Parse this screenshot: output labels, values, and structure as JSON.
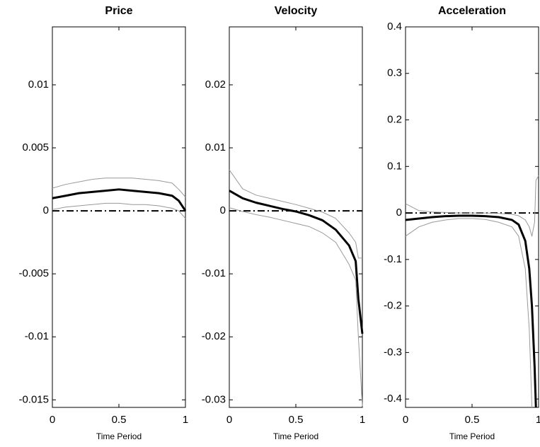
{
  "chart_data": [
    {
      "type": "line",
      "title": "Price",
      "xlabel": "Time Period",
      "x": [
        0,
        0.1,
        0.2,
        0.3,
        0.4,
        0.5,
        0.6,
        0.7,
        0.8,
        0.9,
        0.95,
        1
      ],
      "series": [
        {
          "color": "#000000",
          "width": 3,
          "values": [
            0.001,
            0.0012,
            0.0014,
            0.0015,
            0.0016,
            0.0017,
            0.0016,
            0.0015,
            0.0014,
            0.0012,
            0.0008,
            0
          ]
        },
        {
          "color": "#999999",
          "width": 1,
          "values": [
            0.0018,
            0.0021,
            0.0023,
            0.0025,
            0.0026,
            0.0026,
            0.0026,
            0.0025,
            0.0024,
            0.0022,
            0.0017,
            0.0011
          ]
        },
        {
          "color": "#999999",
          "width": 1,
          "values": [
            0.0001,
            0.0003,
            0.0004,
            0.0005,
            0.0006,
            0.0006,
            0.0005,
            0.0005,
            0.0004,
            0.0002,
            0,
            -0.0006
          ]
        }
      ],
      "hlines": [
        {
          "value": 0,
          "style": "dash-dot",
          "color": "#000000"
        }
      ],
      "xlim": [
        0,
        1
      ],
      "xticks": [
        0,
        0.5,
        1
      ],
      "ylim": [
        -0.0156,
        0.0146
      ],
      "yticks": [
        -0.015,
        -0.01,
        -0.005,
        0,
        0.005,
        0.01
      ]
    },
    {
      "type": "line",
      "title": "Velocity",
      "xlabel": "Time Period",
      "x": [
        0,
        0.1,
        0.2,
        0.3,
        0.4,
        0.5,
        0.6,
        0.7,
        0.8,
        0.9,
        0.95,
        0.97,
        1
      ],
      "series": [
        {
          "color": "#000000",
          "width": 3,
          "values": [
            0.0032,
            0.002,
            0.0013,
            0.0008,
            0.0003,
            -0.0001,
            -0.0007,
            -0.0015,
            -0.003,
            -0.0055,
            -0.008,
            -0.014,
            -0.0195
          ]
        },
        {
          "color": "#999999",
          "width": 1,
          "values": [
            0.0065,
            0.0035,
            0.0025,
            0.002,
            0.0015,
            0.001,
            0.0004,
            -0.0002,
            -0.0012,
            -0.0035,
            -0.005,
            -0.0075,
            -0.0075
          ]
        },
        {
          "color": "#999999",
          "width": 1,
          "values": [
            0.0005,
            -0.0001,
            -0.0006,
            -0.001,
            -0.0015,
            -0.002,
            -0.0025,
            -0.0035,
            -0.005,
            -0.0085,
            -0.011,
            -0.02,
            -0.031
          ]
        }
      ],
      "hlines": [
        {
          "value": 0,
          "style": "dash-dot",
          "color": "#000000"
        }
      ],
      "xlim": [
        0,
        1
      ],
      "xticks": [
        0,
        0.5,
        1
      ],
      "ylim": [
        -0.0312,
        0.0292
      ],
      "yticks": [
        -0.03,
        -0.02,
        -0.01,
        0,
        0.01,
        0.02
      ]
    },
    {
      "type": "line",
      "title": "Acceleration",
      "xlabel": "Time Period",
      "x": [
        0,
        0.1,
        0.2,
        0.3,
        0.4,
        0.5,
        0.6,
        0.7,
        0.8,
        0.85,
        0.9,
        0.93,
        0.95,
        0.97,
        0.98,
        1
      ],
      "series": [
        {
          "color": "#000000",
          "width": 3,
          "values": [
            -0.015,
            -0.012,
            -0.009,
            -0.007,
            -0.006,
            -0.006,
            -0.007,
            -0.009,
            -0.015,
            -0.025,
            -0.06,
            -0.12,
            -0.2,
            -0.33,
            -0.418,
            null
          ]
        },
        {
          "color": "#999999",
          "width": 1,
          "values": [
            0.02,
            0.005,
            0.002,
            0.001,
            0,
            0,
            0,
            -0.001,
            -0.003,
            -0.006,
            -0.015,
            -0.03,
            -0.05,
            -0.02,
            0.07,
            0.08
          ]
        },
        {
          "color": "#999999",
          "width": 1,
          "values": [
            -0.05,
            -0.03,
            -0.02,
            -0.015,
            -0.012,
            -0.012,
            -0.014,
            -0.02,
            -0.03,
            -0.05,
            -0.12,
            -0.25,
            -0.418,
            null,
            null,
            null
          ]
        }
      ],
      "hlines": [
        {
          "value": 0,
          "style": "dash-dot",
          "color": "#000000"
        }
      ],
      "xlim": [
        0,
        1
      ],
      "xticks": [
        0,
        0.5,
        1
      ],
      "ylim": [
        -0.418,
        0.4
      ],
      "yticks": [
        -0.4,
        -0.3,
        -0.2,
        -0.1,
        0,
        0.1,
        0.2,
        0.3,
        0.4
      ]
    }
  ]
}
